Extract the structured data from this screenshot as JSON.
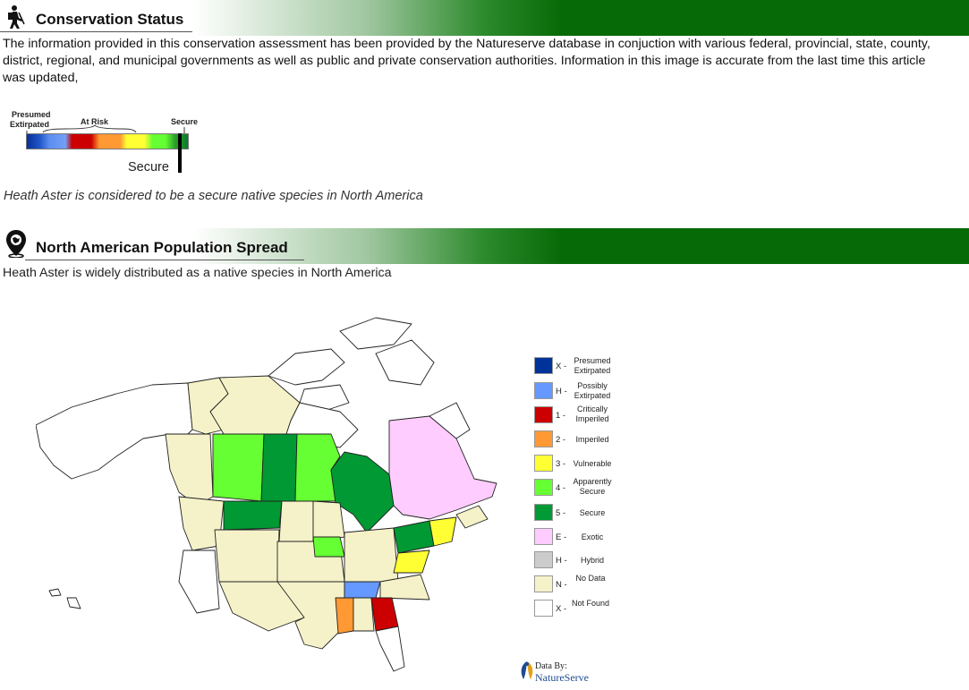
{
  "conservation": {
    "title": "Conservation Status",
    "intro": "The information provided in this conservation assessment has been provided by the Natureserve database in conjuction with various federal, provincial, state, county, district, regional, and municipal governments as well as public and private conservation authorities. Information in this image is accurate from the last time this article was updated,",
    "scale_label_extirpated_1": "Presumed",
    "scale_label_extirpated_2": "Extirpated",
    "scale_label_risk": "At Risk",
    "scale_label_secure": "Secure",
    "status_marker_label": "Secure",
    "status_sentence": "Heath Aster is considered to be a secure native species in North America"
  },
  "population": {
    "title": "North American Population Spread",
    "sentence": "Heath Aster is widely distributed as a native species in North America"
  },
  "legend": [
    {
      "code": "X -",
      "label": "Presumed Extirpated",
      "color": "#003399"
    },
    {
      "code": "H -",
      "label": "Possibly Extirpated",
      "color": "#6699ff"
    },
    {
      "code": "1 -",
      "label": "Critically Imperiled",
      "color": "#cc0000"
    },
    {
      "code": "2 -",
      "label": "Imperiled",
      "color": "#ff9933"
    },
    {
      "code": "3 -",
      "label": "Vulnerable",
      "color": "#ffff33"
    },
    {
      "code": "4 -",
      "label": "Apparently Secure",
      "color": "#66ff33"
    },
    {
      "code": "5 -",
      "label": "Secure",
      "color": "#009933"
    },
    {
      "code": "E -",
      "label": "Exotic",
      "color": "#ffccff"
    },
    {
      "code": "H -",
      "label": "Hybrid",
      "color": "#cccccc"
    },
    {
      "code": "N -",
      "label": "No Data",
      "color": "#f5f2c9"
    },
    {
      "code": "X -",
      "label": "Not Found",
      "color": "#ffffff"
    }
  ],
  "credit": {
    "line1": "Data By:",
    "line2": "NatureServe"
  },
  "icons": {
    "header1": "hiker-icon",
    "header2": "map-pin-icon"
  }
}
